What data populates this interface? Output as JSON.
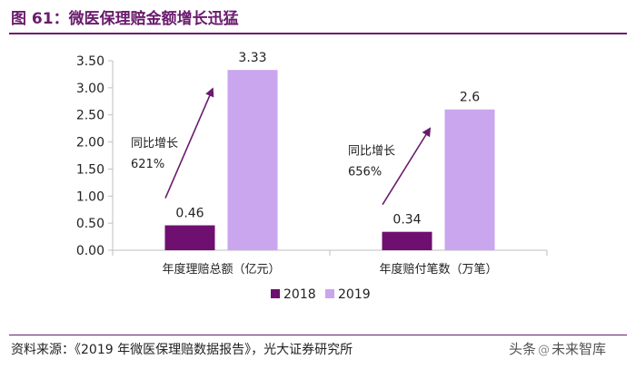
{
  "header": {
    "title": "图 61：微医保理赔金额增长迅猛"
  },
  "footer": {
    "source": "资料来源：《2019 年微医保理赔数据报告》，光大证券研究所",
    "watermark_a": "头条",
    "watermark_icon": "@",
    "watermark_b": "未来智库"
  },
  "chart_data": {
    "type": "bar",
    "title": "",
    "categories": [
      "年度理赔总额（亿元）",
      "年度赔付笔数（万笔）"
    ],
    "series": [
      {
        "name": "2018",
        "values": [
          0.46,
          0.34
        ],
        "color": "#6f0f6f"
      },
      {
        "name": "2019",
        "values": [
          3.33,
          2.6
        ],
        "color": "#c9a6ee"
      }
    ],
    "data_labels": [
      [
        "0.46",
        "3.33"
      ],
      [
        "0.34",
        "2.6"
      ]
    ],
    "ylim": [
      0,
      3.5
    ],
    "yticks": [
      "0.00",
      "0.50",
      "1.00",
      "1.50",
      "2.00",
      "2.50",
      "3.00",
      "3.50"
    ],
    "grid": false,
    "legend": "bottom-center",
    "annotations": [
      {
        "category": 0,
        "line1": "同比增长",
        "line2": "621%"
      },
      {
        "category": 1,
        "line1": "同比增长",
        "line2": "656%"
      }
    ]
  }
}
